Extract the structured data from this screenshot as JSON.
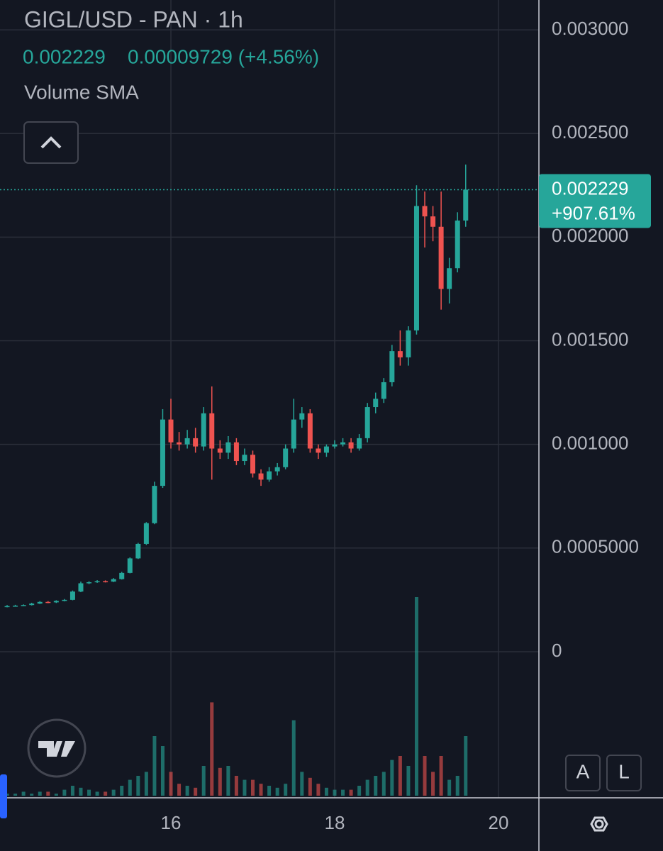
{
  "header": {
    "title": "GIGL/USD - PAN · 1h",
    "change": "0.00009729 (+4.56%)",
    "indicator": "Volume SMA",
    "buttons": [
      "A",
      "L"
    ]
  },
  "chart_data": {
    "type": "candlestick",
    "up_color": "#26a69a",
    "down_color": "#ef5350",
    "x": [
      14.0,
      14.1,
      14.2,
      14.3,
      14.4,
      14.5,
      14.6,
      14.7,
      14.8,
      14.9,
      15.0,
      15.1,
      15.2,
      15.3,
      15.4,
      15.5,
      15.6,
      15.7,
      15.8,
      15.9,
      16.0,
      16.1,
      16.2,
      16.3,
      16.4,
      16.5,
      16.6,
      16.7,
      16.8,
      16.9,
      17.0,
      17.1,
      17.2,
      17.3,
      17.4,
      17.5,
      17.6,
      17.7,
      17.8,
      17.9,
      18.0,
      18.1,
      18.2,
      18.3,
      18.4,
      18.5,
      18.6,
      18.7,
      18.8,
      18.9,
      19.0,
      19.1,
      19.2,
      19.3,
      19.4,
      19.5,
      19.6
    ],
    "open": [
      0.000218,
      0.00022,
      0.000222,
      0.000225,
      0.000232,
      0.00024,
      0.000238,
      0.000245,
      0.00025,
      0.00029,
      0.00033,
      0.000335,
      0.00034,
      0.000338,
      0.00035,
      0.00038,
      0.00045,
      0.00052,
      0.00062,
      0.0008,
      0.00112,
      0.00101,
      0.001,
      0.00103,
      0.00099,
      0.00115,
      0.00098,
      0.00096,
      0.00101,
      0.00092,
      0.00095,
      0.00086,
      0.00083,
      0.00087,
      0.00089,
      0.00098,
      0.00112,
      0.00115,
      0.00098,
      0.00096,
      0.00099,
      0.001,
      0.00101,
      0.00098,
      0.00103,
      0.00118,
      0.00122,
      0.0013,
      0.00145,
      0.00142,
      0.00155,
      0.00215,
      0.0021,
      0.00205,
      0.00175,
      0.00185,
      0.00208
    ],
    "high": [
      0.000225,
      0.000226,
      0.000228,
      0.000236,
      0.000244,
      0.000244,
      0.000248,
      0.000254,
      0.000295,
      0.000338,
      0.00034,
      0.000345,
      0.000344,
      0.000355,
      0.000385,
      0.000455,
      0.000525,
      0.000625,
      0.00082,
      0.00117,
      0.00122,
      0.00106,
      0.00107,
      0.00108,
      0.00118,
      0.00128,
      0.00102,
      0.00104,
      0.00103,
      0.00098,
      0.00097,
      0.00088,
      0.00089,
      0.00091,
      0.001,
      0.00122,
      0.00118,
      0.00117,
      0.001,
      0.001,
      0.00102,
      0.00103,
      0.00103,
      0.00105,
      0.0012,
      0.00125,
      0.00132,
      0.00148,
      0.00155,
      0.00157,
      0.00225,
      0.00222,
      0.00215,
      0.00222,
      0.0019,
      0.00212,
      0.00235
    ],
    "low": [
      0.000214,
      0.000217,
      0.00022,
      0.000223,
      0.00023,
      0.000234,
      0.000235,
      0.000243,
      0.000248,
      0.000287,
      0.000326,
      0.000332,
      0.000334,
      0.000336,
      0.000348,
      0.000378,
      0.000447,
      0.000515,
      0.000615,
      0.00079,
      0.00098,
      0.00097,
      0.00098,
      0.00096,
      0.00097,
      0.00083,
      0.00093,
      0.00093,
      0.0009,
      0.0009,
      0.00084,
      0.0008,
      0.00082,
      0.00085,
      0.00088,
      0.00096,
      0.00108,
      0.00096,
      0.00093,
      0.00094,
      0.00098,
      0.00099,
      0.00096,
      0.00097,
      0.00101,
      0.00115,
      0.0012,
      0.00128,
      0.00138,
      0.00138,
      0.00153,
      0.00195,
      0.00198,
      0.00165,
      0.00168,
      0.00183,
      0.00205
    ],
    "close": [
      0.00022,
      0.000222,
      0.000225,
      0.000232,
      0.00024,
      0.000238,
      0.000245,
      0.00025,
      0.00029,
      0.00033,
      0.000335,
      0.00034,
      0.000338,
      0.00035,
      0.00038,
      0.00045,
      0.00052,
      0.00062,
      0.0008,
      0.00112,
      0.00101,
      0.001,
      0.00103,
      0.00099,
      0.00115,
      0.00098,
      0.00096,
      0.00101,
      0.00092,
      0.00095,
      0.00086,
      0.00083,
      0.00087,
      0.00089,
      0.00098,
      0.00112,
      0.00115,
      0.00098,
      0.00096,
      0.00099,
      0.001,
      0.00101,
      0.00098,
      0.00103,
      0.00118,
      0.00122,
      0.0013,
      0.00145,
      0.00142,
      0.00155,
      0.00215,
      0.0021,
      0.00205,
      0.00175,
      0.00185,
      0.00208,
      0.002229
    ],
    "volume": [
      1,
      1,
      2,
      1,
      2,
      2,
      1,
      3,
      5,
      4,
      3,
      2,
      2,
      3,
      5,
      8,
      10,
      12,
      30,
      25,
      12,
      6,
      5,
      4,
      15,
      47,
      14,
      15,
      10,
      8,
      8,
      6,
      5,
      4,
      6,
      38,
      12,
      9,
      6,
      4,
      3,
      3,
      3,
      5,
      8,
      10,
      12,
      18,
      20,
      15,
      100,
      20,
      12,
      20,
      8,
      10,
      30
    ],
    "vlim": [
      0,
      100
    ],
    "xlim": [
      13.913,
      20.494
    ],
    "xticks": [
      16,
      18,
      20
    ],
    "ylim": [
      -0.000705,
      0.003144
    ],
    "yticks": [
      0,
      {
        "value": 0.0005,
        "label": "0.0005000"
      },
      {
        "value": 0.001,
        "label": "0.001000"
      },
      {
        "value": 0.0015,
        "label": "0.001500"
      },
      {
        "value": 0.002,
        "label": "0.002000"
      },
      {
        "value": 0.0025,
        "label": "0.002500"
      },
      {
        "value": 0.003,
        "label": "0.003000"
      }
    ],
    "last_price": 0.002229,
    "change_label": "+907.61%",
    "grid": true
  }
}
